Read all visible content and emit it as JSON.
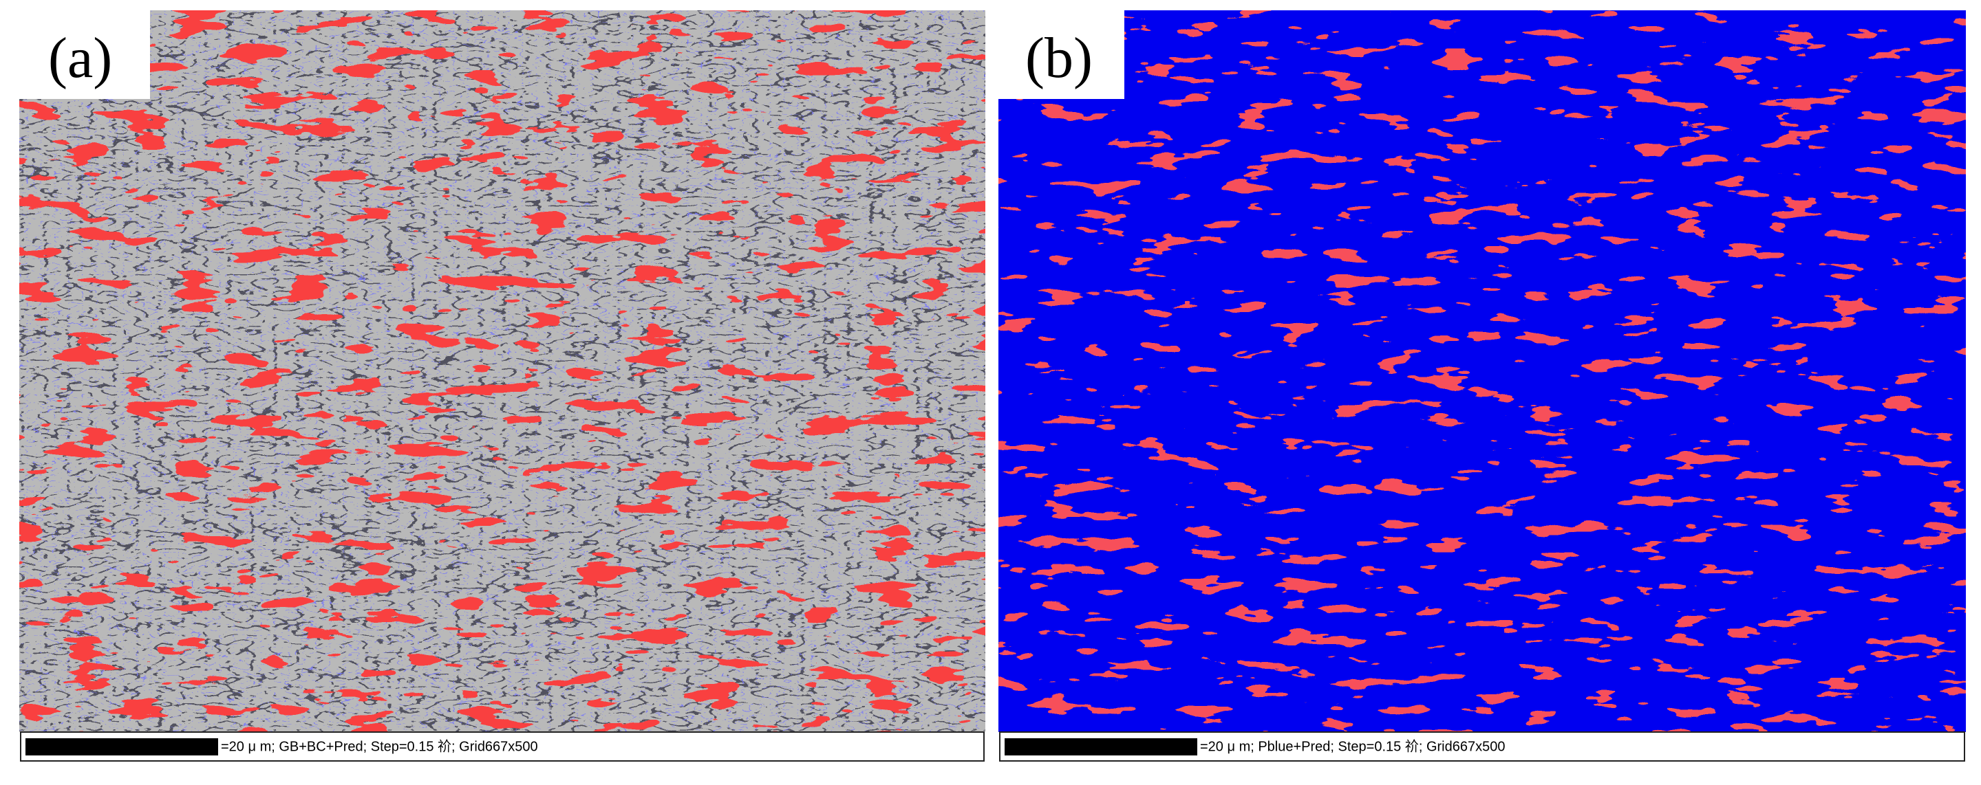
{
  "panels": [
    {
      "label": "(a)",
      "caption": "=20 μ m; GB+BC+Pred; Step=0.15 祄; Grid667x500"
    },
    {
      "label": "(b)",
      "caption": "=20 μ m; Pblue+Pred; Step=0.15 祄; Grid667x500"
    }
  ]
}
